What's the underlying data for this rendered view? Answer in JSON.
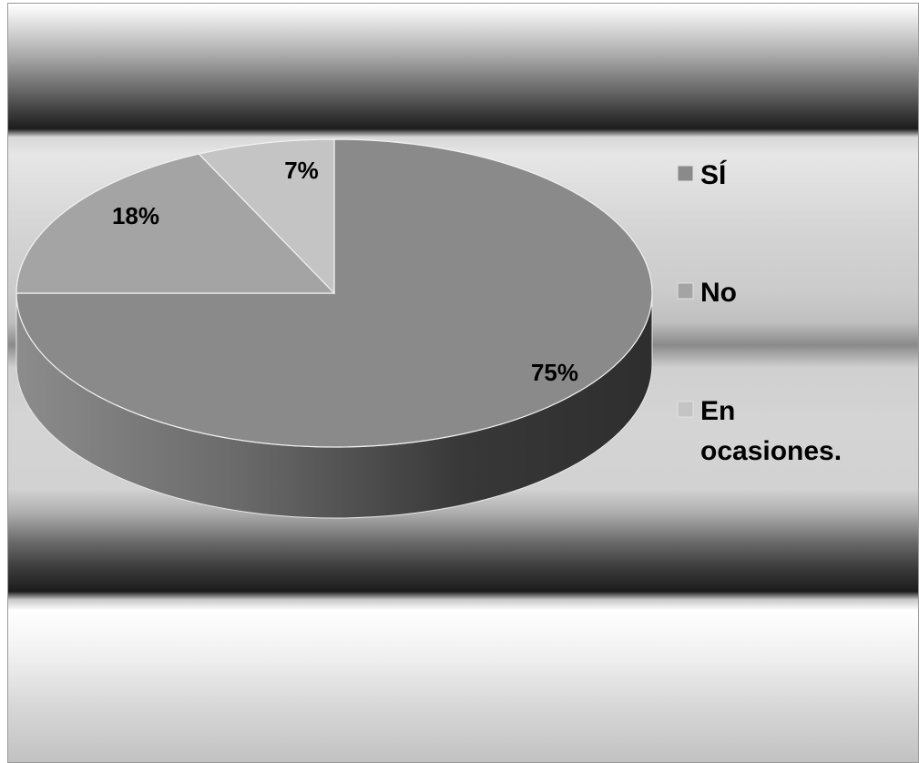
{
  "chart_data": {
    "type": "pie",
    "three_d": true,
    "categories": [
      "SÍ",
      "No",
      "En ocasiones."
    ],
    "values": [
      75,
      18,
      7
    ],
    "labels": [
      "75%",
      "18%",
      "7%"
    ],
    "colors": [
      "#8a8a8a",
      "#a4a4a4",
      "#c4c4c4"
    ],
    "legend_position": "right"
  }
}
